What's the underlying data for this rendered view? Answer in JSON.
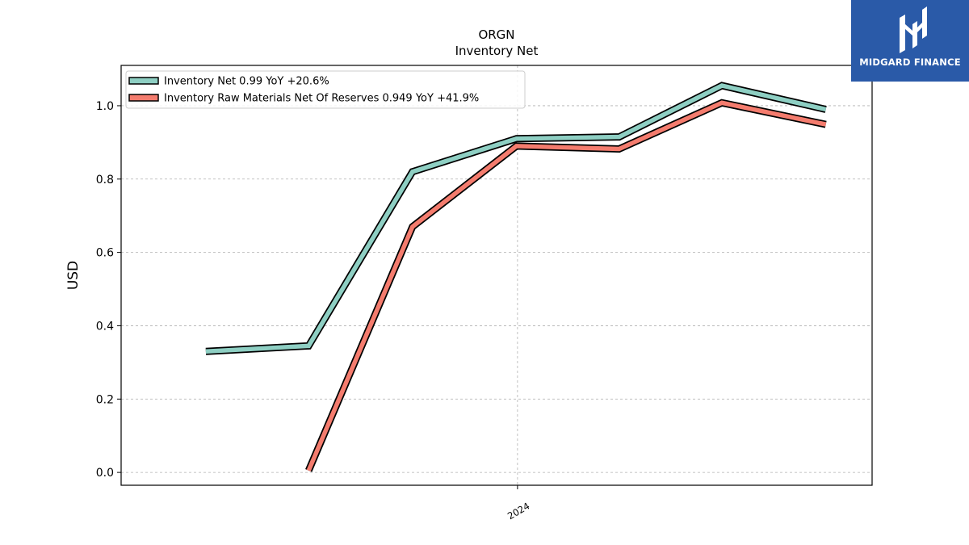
{
  "brand": {
    "name": "MIDGARD FINANCE",
    "bg_color": "#2a5aa8"
  },
  "chart_data": {
    "type": "line",
    "title": "ORGN",
    "subtitle": "Inventory Net",
    "ylabel": "USD",
    "xlabel": "",
    "ylim": [
      -0.035,
      1.11
    ],
    "yticks": [
      0.0,
      0.2,
      0.4,
      0.6,
      0.8,
      1.0
    ],
    "ytick_labels": [
      "0.0",
      "0.2",
      "0.4",
      "0.6",
      "0.8",
      "1.0"
    ],
    "x": [
      "2023-03-31",
      "2023-06-30",
      "2023-09-30",
      "2023-12-31",
      "2024-03-31",
      "2024-06-30",
      "2024-09-30"
    ],
    "xlim": [
      "2023-01-15",
      "2024-11-10"
    ],
    "xticks": [
      "2024-01-01"
    ],
    "xtick_labels": [
      "2024"
    ],
    "grid": true,
    "legend_position": "top-left",
    "series": [
      {
        "name": "Inventory Net  0.99 YoY +20.6%",
        "color": "#8ecfc3",
        "values": [
          0.33,
          0.345,
          0.82,
          0.91,
          0.915,
          1.055,
          0.99
        ]
      },
      {
        "name": "Inventory Raw Materials Net Of Reserves  0.949 YoY +41.9%",
        "color": "#f47c6e",
        "values": [
          null,
          0.005,
          0.67,
          0.89,
          0.882,
          1.008,
          0.949
        ]
      }
    ]
  }
}
